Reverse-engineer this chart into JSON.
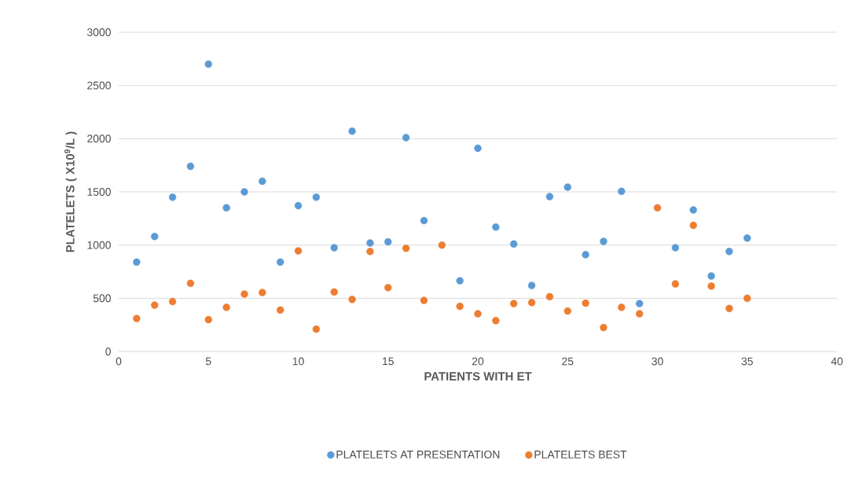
{
  "chart_data": {
    "type": "scatter",
    "xlabel": "PATIENTS WITH ET",
    "ylabel": "PLATELETS ( X10$^{9}$/L )",
    "x": [
      1,
      2,
      3,
      4,
      5,
      6,
      7,
      8,
      9,
      10,
      11,
      12,
      13,
      14,
      15,
      16,
      17,
      18,
      19,
      20,
      21,
      22,
      23,
      24,
      25,
      26,
      27,
      28,
      29,
      30,
      31,
      32,
      33,
      34,
      35
    ],
    "series": [
      {
        "name": "PLATELETS AT PRESENTATION",
        "color": "#5b9bd5",
        "values": [
          840,
          1080,
          1450,
          1740,
          2700,
          1350,
          1500,
          1600,
          840,
          1370,
          1450,
          975,
          2070,
          1020,
          1030,
          2010,
          1230,
          null,
          665,
          1910,
          1170,
          1010,
          620,
          1455,
          1545,
          910,
          1035,
          1505,
          450,
          null,
          975,
          1330,
          710,
          940,
          1065
        ]
      },
      {
        "name": "PLATELETS BEST",
        "color": "#ed7d31",
        "values": [
          310,
          435,
          470,
          640,
          300,
          415,
          540,
          555,
          390,
          945,
          210,
          560,
          490,
          940,
          600,
          970,
          480,
          1000,
          425,
          355,
          290,
          450,
          460,
          515,
          380,
          455,
          225,
          415,
          355,
          1350,
          635,
          1185,
          615,
          405,
          500
        ]
      }
    ],
    "xlim": [
      0,
      40
    ],
    "xticks": [
      0,
      5,
      10,
      15,
      20,
      25,
      30,
      35,
      40
    ],
    "ylim": [
      0,
      3000
    ],
    "yticks": [
      0,
      500,
      1000,
      1500,
      2000,
      2500,
      3000
    ],
    "grid": "y",
    "legend": "bottom"
  }
}
